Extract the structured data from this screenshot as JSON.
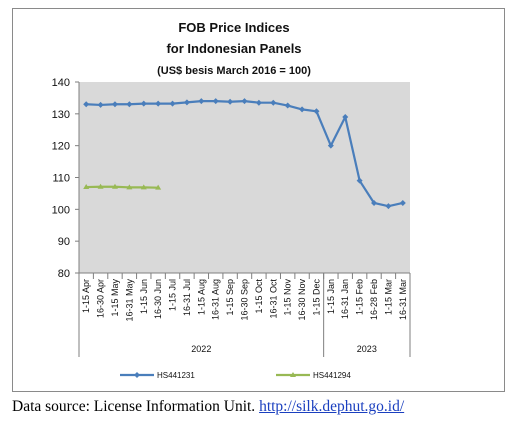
{
  "chart_data": {
    "type": "line",
    "title_lines": [
      "FOB Price Indices",
      "for Indonesian Panels",
      "(US$ besis March 2016 = 100)"
    ],
    "categories": [
      "1-15 Apr",
      "16-30 Apr",
      "1-15 May",
      "16-31 May",
      "1-15 Jun",
      "16-30 Jun",
      "1-15 Jul",
      "16-31 Jul",
      "1-15 Aug",
      "16-31 Aug",
      "1-15 Sep",
      "16-30 Sep",
      "1-15 Oct",
      "16-31 Oct",
      "1-15 Nov",
      "16-30 Nov",
      "1-15 Dec",
      "1-15 Jan",
      "16-31 Jan",
      "1-15 Feb",
      "16-28 Feb",
      "1-15 Mar",
      "16-31 Mar"
    ],
    "year_groups": [
      {
        "label": "2022",
        "start": 0,
        "end": 16
      },
      {
        "label": "2023",
        "start": 17,
        "end": 22
      }
    ],
    "series": [
      {
        "name": "HS441231",
        "color": "#4a7ebb",
        "values": [
          133,
          132.8,
          133,
          133,
          133.2,
          133.2,
          133.2,
          133.6,
          134,
          134,
          133.8,
          134,
          133.5,
          133.5,
          132.6,
          131.4,
          130.8,
          120,
          129,
          109,
          102,
          101,
          102
        ]
      },
      {
        "name": "HS441294",
        "color": "#98b954",
        "values": [
          107,
          107.1,
          107.1,
          106.9,
          106.9,
          106.8,
          null,
          null,
          null,
          null,
          null,
          null,
          null,
          null,
          null,
          null,
          null,
          null,
          null,
          null,
          null,
          null,
          null
        ]
      }
    ],
    "ylim": [
      80,
      140
    ],
    "yticks": [
      80,
      90,
      100,
      110,
      120,
      130,
      140
    ],
    "grid": false,
    "plot_background": "#d9d9d9",
    "legend_position": "bottom"
  },
  "source": {
    "text": "Data source: License Information Unit.",
    "link": "http://silk.dephut.go.id/"
  }
}
